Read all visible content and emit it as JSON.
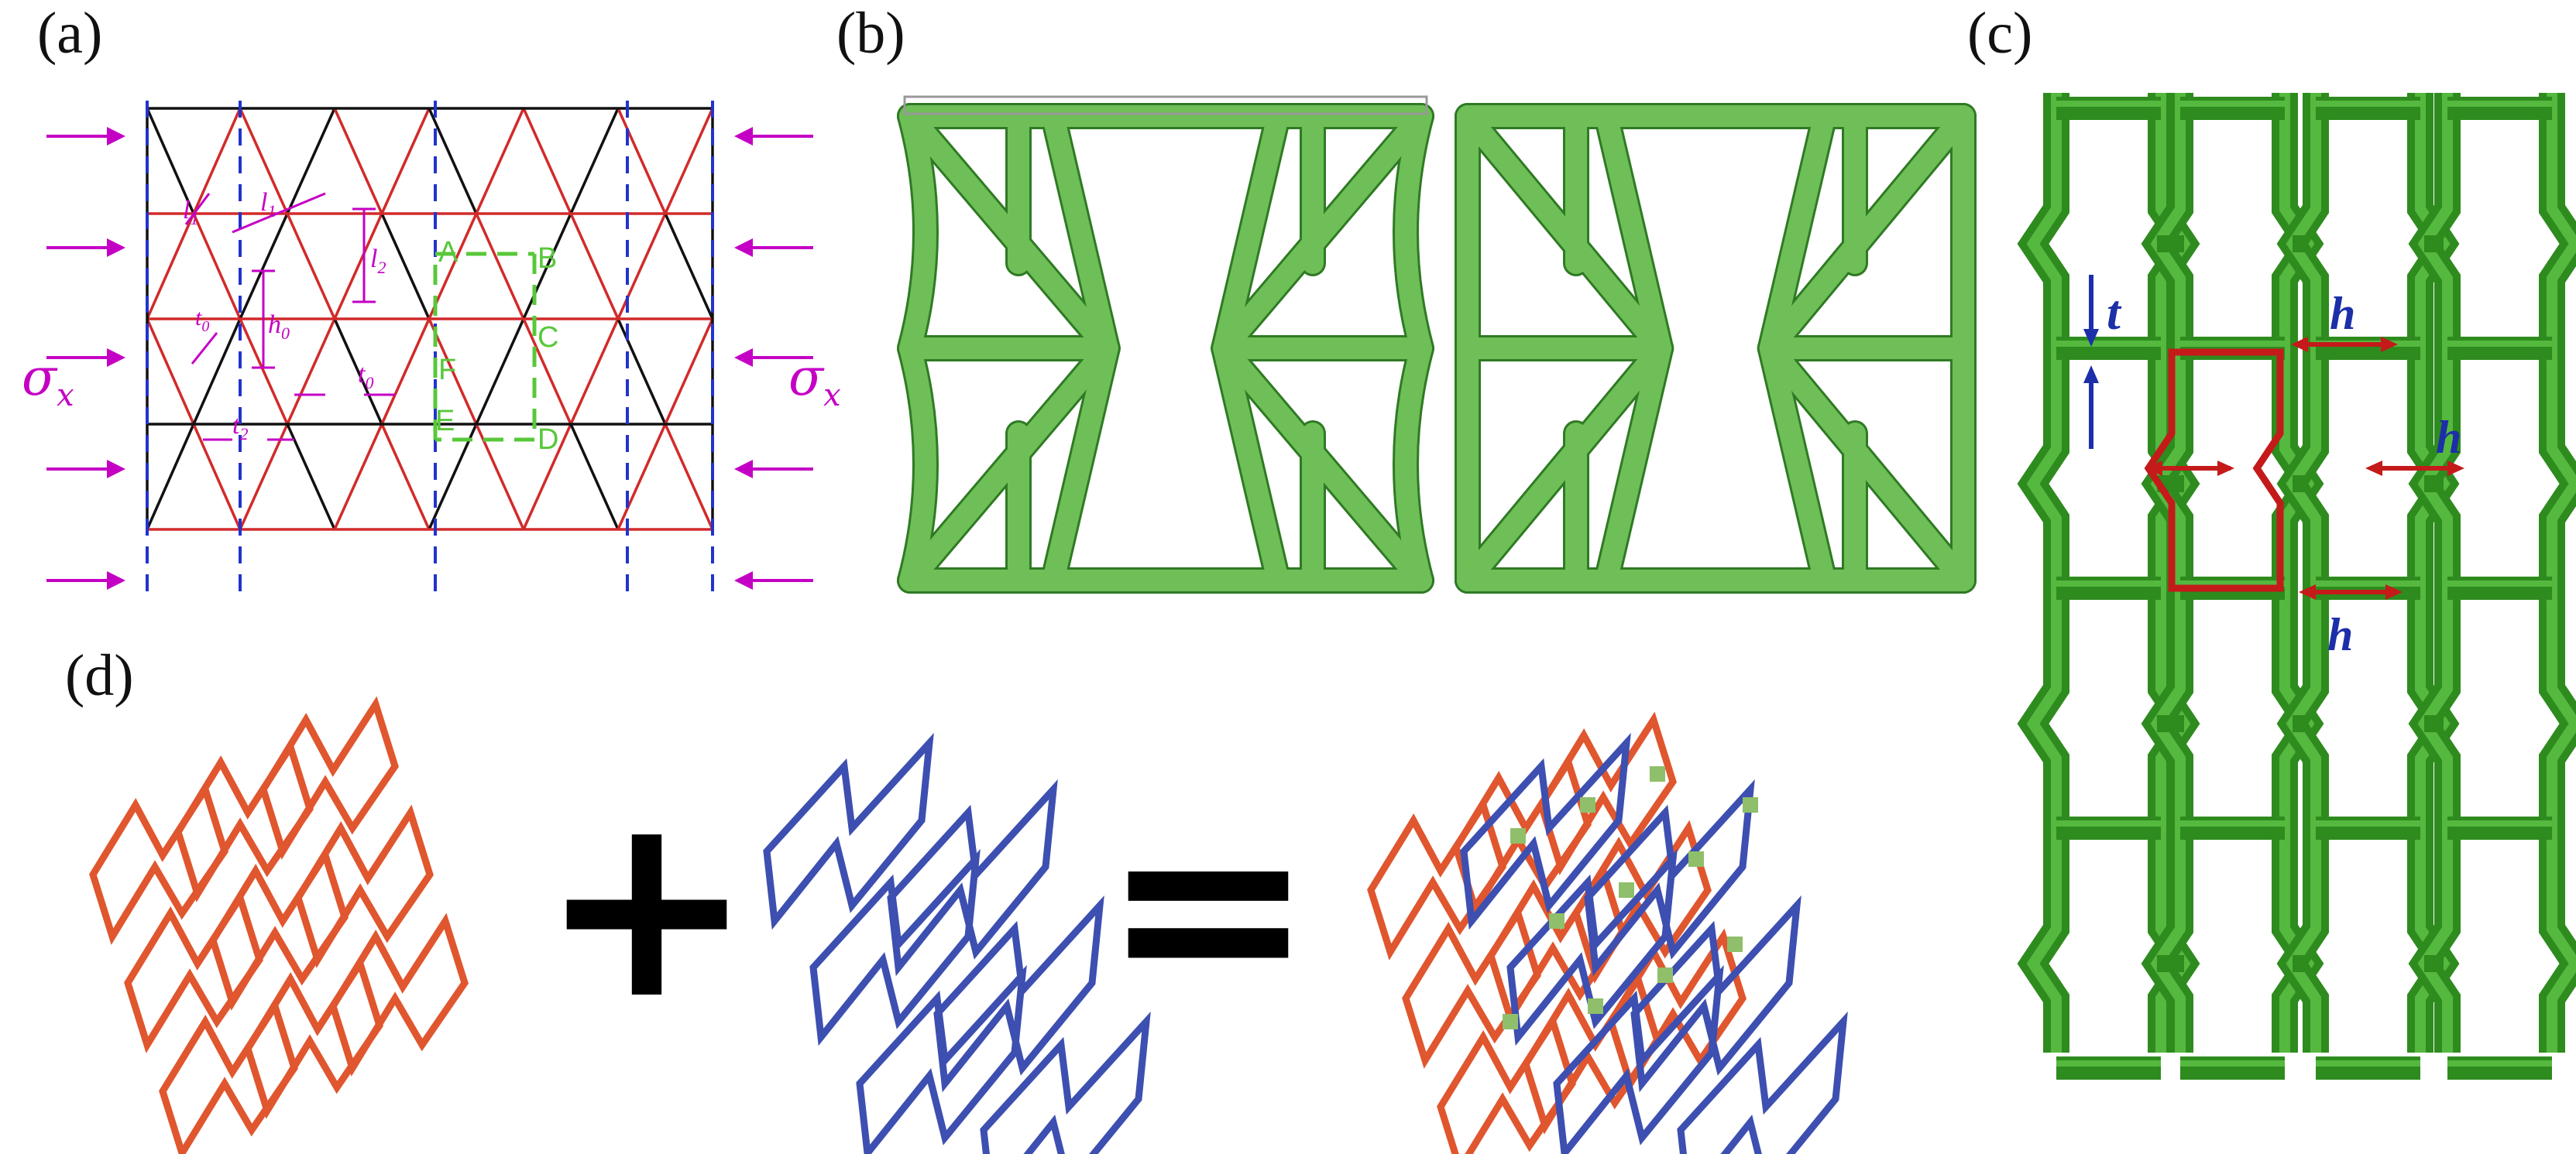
{
  "panels": {
    "a": {
      "label": "(a)"
    },
    "b": {
      "label": "(b)"
    },
    "c": {
      "label": "(c)"
    },
    "d": {
      "label": "(d)"
    }
  },
  "panel_a": {
    "stress_left": "σ",
    "stress_right": "σ",
    "stress_sub": "x",
    "dim_l1": "l",
    "dim_l1_sub": "1",
    "dim_l1b": "l",
    "dim_l1b_sub": "1",
    "dim_l2": "l",
    "dim_l2_sub": "2",
    "dim_h0": "h",
    "dim_h0_sub": "0",
    "dim_t0a": "t",
    "dim_t0a_sub": "0",
    "dim_t0b": "t",
    "dim_t0b_sub": "0",
    "dim_t2": "t",
    "dim_t2_sub": "2",
    "point_A": "A",
    "point_B": "B",
    "point_C": "C",
    "point_D": "D",
    "point_E": "E",
    "point_F": "F",
    "colors": {
      "red": "#d22a2a",
      "black": "#111111",
      "blue_dash": "#2233cc",
      "magenta": "#c400c4",
      "green": "#58c83a"
    }
  },
  "panel_b": {
    "colors": {
      "strut": "#6ebf57",
      "strut_edge": "#2f7a24"
    }
  },
  "panel_c": {
    "label_t": "t",
    "label_h1": "h",
    "label_h2": "h",
    "label_h3": "h",
    "colors": {
      "lattice": "#2e8b1e",
      "lattice_light": "#55b83f",
      "highlight": "#c41a1a",
      "dim": "#1d2fa8"
    }
  },
  "panel_d": {
    "plus": "+",
    "equals": "=",
    "colors": {
      "red_lattice": "#e0562e",
      "blue_lattice": "#3d4fb0",
      "nodes": "#8fbf6a"
    }
  }
}
